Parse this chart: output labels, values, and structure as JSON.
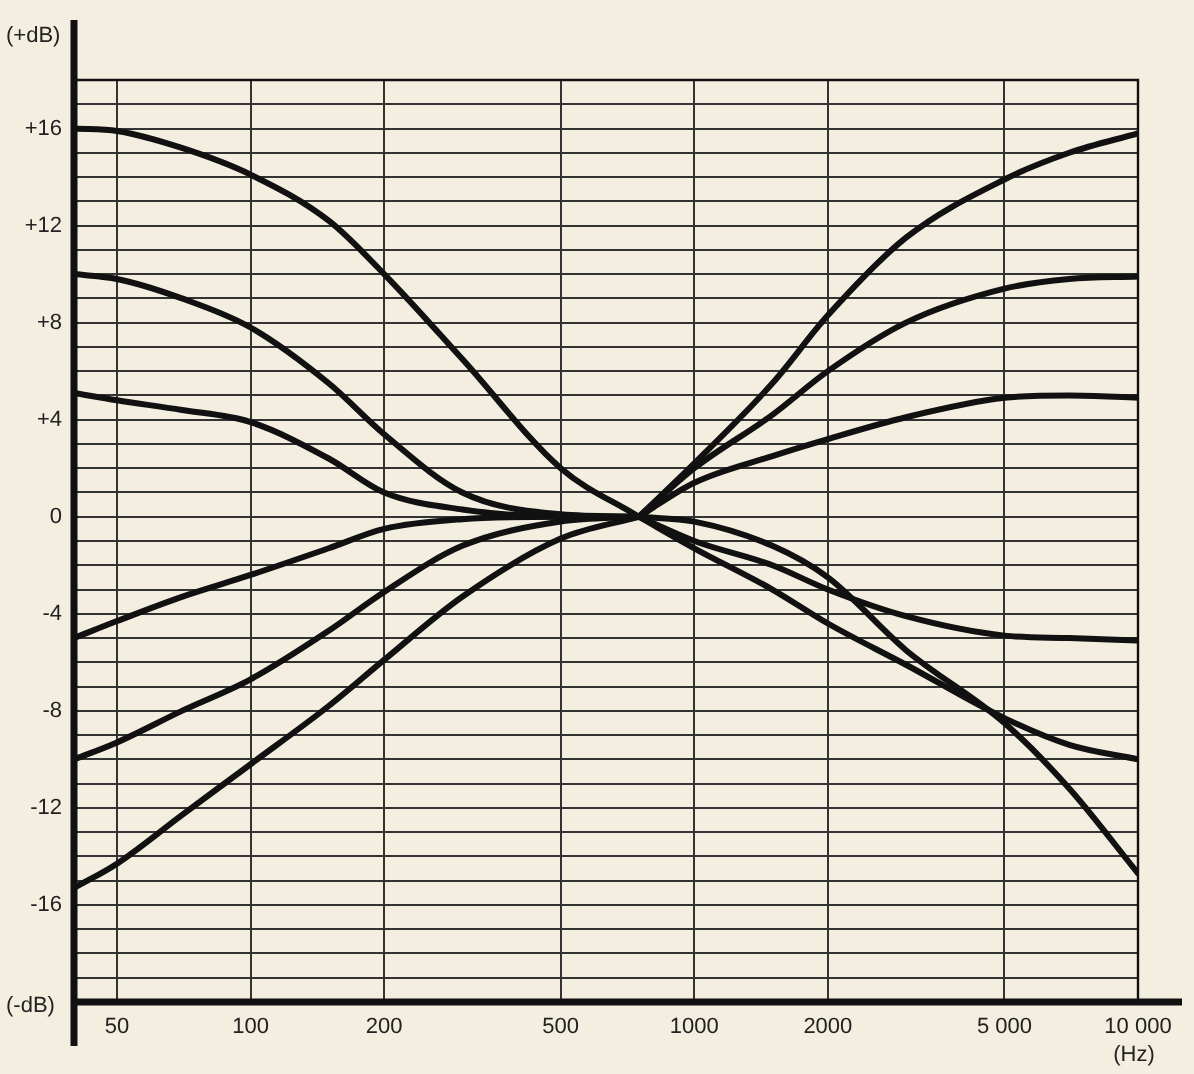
{
  "chart_data": {
    "type": "line",
    "xlabel": "(Hz)",
    "ylabel": "(+dB)",
    "annotations": [
      "(-dB)"
    ],
    "log": "x",
    "grid": true,
    "legend": false,
    "marker": "none",
    "line_style": "solid",
    "xlim": [
      40,
      10000
    ],
    "ylim": [
      -20,
      18
    ],
    "xticks": [
      50,
      100,
      200,
      500,
      1000,
      2000,
      {
        "value": 5000,
        "label": "5 000"
      },
      {
        "value": 10000,
        "label": "10 000"
      }
    ],
    "yticks": [
      {
        "value": -20,
        "label": null
      },
      {
        "value": -19,
        "label": null
      },
      {
        "value": -18,
        "label": null
      },
      {
        "value": -17,
        "label": null
      },
      -16,
      {
        "value": -15,
        "label": null
      },
      {
        "value": -14,
        "label": null
      },
      {
        "value": -13,
        "label": null
      },
      -12,
      {
        "value": -11,
        "label": null
      },
      {
        "value": -10,
        "label": null
      },
      {
        "value": -9,
        "label": null
      },
      -8,
      {
        "value": -7,
        "label": null
      },
      {
        "value": -6,
        "label": null
      },
      {
        "value": -5,
        "label": null
      },
      -4,
      {
        "value": -3,
        "label": null
      },
      {
        "value": -2,
        "label": null
      },
      {
        "value": -1,
        "label": null
      },
      0,
      {
        "value": 1,
        "label": null
      },
      {
        "value": 2,
        "label": null
      },
      {
        "value": 3,
        "label": null
      },
      {
        "value": 4,
        "label": "+4"
      },
      {
        "value": 5,
        "label": null
      },
      {
        "value": 6,
        "label": null
      },
      {
        "value": 7,
        "label": null
      },
      {
        "value": 8,
        "label": "+8"
      },
      {
        "value": 9,
        "label": null
      },
      {
        "value": 10,
        "label": null
      },
      {
        "value": 11,
        "label": null
      },
      {
        "value": 12,
        "label": "+12"
      },
      {
        "value": 13,
        "label": null
      },
      {
        "value": 14,
        "label": null
      },
      {
        "value": 15,
        "label": null
      },
      {
        "value": 16,
        "label": "+16"
      },
      {
        "value": 17,
        "label": null
      },
      {
        "value": 18,
        "label": null
      }
    ],
    "series": [
      {
        "color": "#111111",
        "x": [
          40,
          50,
          70,
          100,
          150,
          200,
          300,
          500,
          750
        ],
        "values": [
          16,
          15.9,
          15.2,
          14.1,
          12.2,
          10,
          6.5,
          2,
          0
        ]
      },
      {
        "color": "#111111",
        "x": [
          40,
          50,
          70,
          100,
          150,
          200,
          300,
          500,
          750
        ],
        "values": [
          10,
          9.8,
          9,
          7.8,
          5.5,
          3.4,
          1,
          0.1,
          0
        ]
      },
      {
        "color": "#111111",
        "x": [
          40,
          50,
          70,
          100,
          150,
          200,
          300,
          500,
          750
        ],
        "values": [
          5.1,
          4.8,
          4.4,
          3.9,
          2.4,
          1,
          0.3,
          0,
          0
        ]
      },
      {
        "color": "#111111",
        "x": [
          40,
          50,
          70,
          100,
          150,
          200,
          300,
          500,
          750
        ],
        "values": [
          -5,
          -4.3,
          -3.3,
          -2.4,
          -1.3,
          -0.5,
          -0.1,
          0,
          0
        ]
      },
      {
        "color": "#111111",
        "x": [
          40,
          50,
          70,
          100,
          150,
          200,
          300,
          500,
          750
        ],
        "values": [
          -10,
          -9.3,
          -8,
          -6.7,
          -4.7,
          -3.1,
          -1.2,
          -0.2,
          0
        ]
      },
      {
        "color": "#111111",
        "x": [
          40,
          50,
          70,
          100,
          150,
          200,
          300,
          500,
          750
        ],
        "values": [
          -15.3,
          -14.3,
          -12.3,
          -10.2,
          -7.8,
          -5.9,
          -3.3,
          -0.9,
          0
        ]
      },
      {
        "color": "#111111",
        "x": [
          750,
          1000,
          1500,
          2000,
          3000,
          5000,
          7000,
          10000
        ],
        "values": [
          0,
          2.2,
          5.5,
          8.3,
          11.5,
          13.9,
          15,
          15.8
        ]
      },
      {
        "color": "#111111",
        "x": [
          750,
          1000,
          1500,
          2000,
          3000,
          5000,
          7000,
          10000
        ],
        "values": [
          0,
          2,
          4.2,
          6,
          8,
          9.4,
          9.8,
          9.9
        ]
      },
      {
        "color": "#111111",
        "x": [
          750,
          1000,
          1500,
          2000,
          3000,
          5000,
          7000,
          10000
        ],
        "values": [
          0,
          1.4,
          2.5,
          3.2,
          4.1,
          4.9,
          5,
          4.9
        ]
      },
      {
        "color": "#111111",
        "x": [
          750,
          1000,
          1500,
          2000,
          3000,
          5000,
          7000,
          10000
        ],
        "values": [
          0,
          -1,
          -2,
          -3,
          -4.1,
          -4.9,
          -5,
          -5.1
        ]
      },
      {
        "color": "#111111",
        "x": [
          750,
          1000,
          1500,
          2000,
          3000,
          5000,
          7000,
          10000
        ],
        "values": [
          0,
          -1.3,
          -3,
          -4.4,
          -6.1,
          -8.3,
          -9.4,
          -10
        ]
      },
      {
        "color": "#111111",
        "x": [
          750,
          1000,
          1500,
          2000,
          3000,
          5000,
          7000,
          10000
        ],
        "values": [
          0,
          -0.2,
          -1.2,
          -2.5,
          -5.5,
          -8.5,
          -11.2,
          -14.7
        ]
      }
    ]
  }
}
